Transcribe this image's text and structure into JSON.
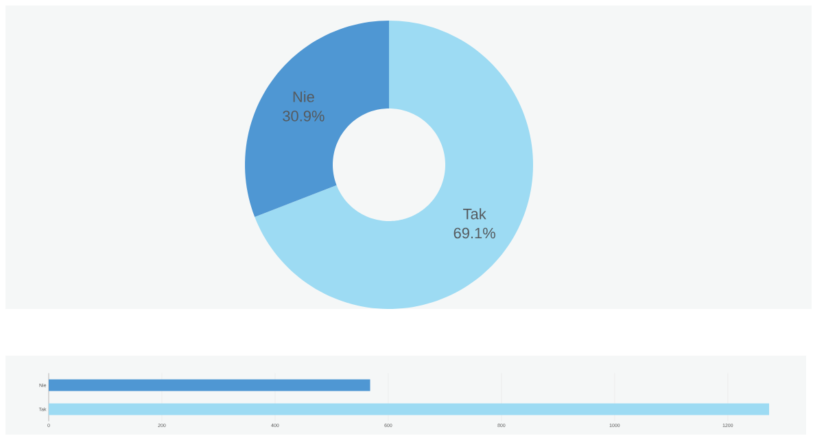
{
  "chart_data": [
    {
      "type": "donut",
      "categories": [
        "Tak",
        "Nie"
      ],
      "values": [
        69.1,
        30.9
      ],
      "value_labels": [
        "69.1%",
        "30.9%"
      ],
      "colors": [
        "#9ddbf3",
        "#4f97d3"
      ]
    },
    {
      "type": "bar",
      "orientation": "horizontal",
      "categories": [
        "Nie",
        "Tak"
      ],
      "values": [
        568,
        1273
      ],
      "colors": [
        "#4f97d3",
        "#9ddbf3"
      ],
      "xlim": [
        0,
        1273
      ],
      "xticks": [
        0,
        200,
        400,
        600,
        800,
        1000,
        1200
      ],
      "grid": "x"
    }
  ]
}
